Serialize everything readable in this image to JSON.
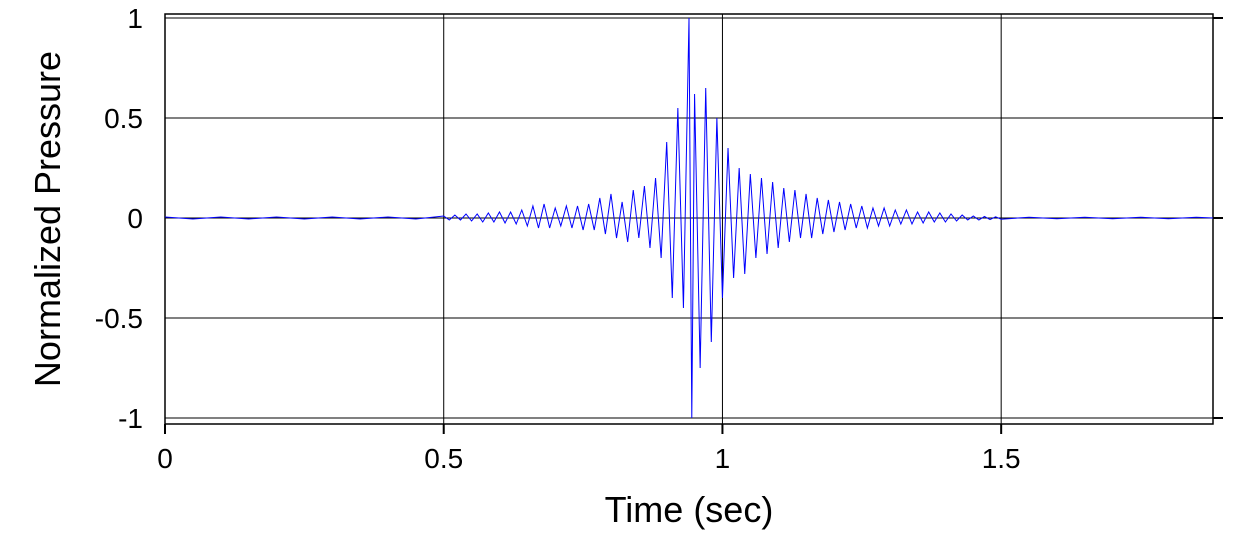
{
  "chart_data": {
    "type": "line",
    "x_label": "Time (sec)",
    "y_label": "Normalized Pressure",
    "x": [
      0,
      0.05,
      0.1,
      0.15,
      0.2,
      0.25,
      0.3,
      0.35,
      0.4,
      0.45,
      0.5,
      0.51,
      0.52,
      0.53,
      0.54,
      0.55,
      0.56,
      0.57,
      0.58,
      0.59,
      0.6,
      0.61,
      0.62,
      0.63,
      0.64,
      0.65,
      0.66,
      0.67,
      0.68,
      0.69,
      0.7,
      0.71,
      0.72,
      0.73,
      0.74,
      0.75,
      0.76,
      0.77,
      0.78,
      0.79,
      0.8,
      0.81,
      0.82,
      0.83,
      0.84,
      0.85,
      0.86,
      0.87,
      0.88,
      0.89,
      0.9,
      0.91,
      0.92,
      0.93,
      0.94,
      0.945,
      0.95,
      0.96,
      0.97,
      0.98,
      0.99,
      1,
      1.01,
      1.02,
      1.03,
      1.04,
      1.05,
      1.06,
      1.07,
      1.08,
      1.09,
      1.1,
      1.11,
      1.12,
      1.13,
      1.14,
      1.15,
      1.16,
      1.17,
      1.18,
      1.19,
      1.2,
      1.21,
      1.22,
      1.23,
      1.24,
      1.25,
      1.26,
      1.27,
      1.28,
      1.29,
      1.3,
      1.31,
      1.32,
      1.33,
      1.34,
      1.35,
      1.36,
      1.37,
      1.38,
      1.39,
      1.4,
      1.41,
      1.42,
      1.43,
      1.44,
      1.45,
      1.46,
      1.47,
      1.48,
      1.49,
      1.5,
      1.55,
      1.6,
      1.65,
      1.7,
      1.75,
      1.8,
      1.85,
      1.88
    ],
    "series": [
      {
        "color": "#0000ff",
        "values": [
          0.005,
          -0.005,
          0.005,
          -0.005,
          0.005,
          -0.005,
          0.005,
          -0.005,
          0.005,
          -0.005,
          0.01,
          -0.01,
          0.015,
          -0.01,
          0.02,
          -0.015,
          0.02,
          -0.02,
          0.025,
          -0.02,
          0.03,
          -0.025,
          0.03,
          -0.03,
          0.04,
          -0.04,
          0.06,
          -0.05,
          0.07,
          -0.05,
          0.05,
          -0.04,
          0.06,
          -0.05,
          0.06,
          -0.06,
          0.07,
          -0.06,
          0.1,
          -0.08,
          0.12,
          -0.1,
          0.08,
          -0.12,
          0.14,
          -0.1,
          0.16,
          -0.15,
          0.2,
          -0.2,
          0.38,
          -0.4,
          0.55,
          -0.45,
          1,
          -1,
          0.62,
          -0.75,
          0.65,
          -0.62,
          0.5,
          -0.4,
          0.35,
          -0.3,
          0.25,
          -0.28,
          0.22,
          -0.2,
          0.2,
          -0.18,
          0.18,
          -0.15,
          0.15,
          -0.12,
          0.14,
          -0.1,
          0.12,
          -0.1,
          0.1,
          -0.08,
          0.09,
          -0.07,
          0.08,
          -0.06,
          0.07,
          -0.05,
          0.06,
          -0.05,
          0.05,
          -0.04,
          0.05,
          -0.04,
          0.04,
          -0.03,
          0.04,
          -0.03,
          0.03,
          -0.025,
          0.03,
          -0.02,
          0.025,
          -0.02,
          0.02,
          -0.015,
          0.015,
          -0.01,
          0.01,
          -0.01,
          0.008,
          -0.008,
          0.006,
          -0.006,
          0.004,
          -0.004,
          0.004,
          -0.004,
          0.004,
          -0.004,
          0.004,
          0
        ]
      }
    ],
    "xlim": [
      0,
      1.88
    ],
    "ylim": [
      -1.03,
      1.02
    ],
    "xticks": [
      0,
      0.5,
      1,
      1.5
    ],
    "yticks": [
      -1,
      -0.5,
      0,
      0.5,
      1
    ],
    "grid": true
  }
}
